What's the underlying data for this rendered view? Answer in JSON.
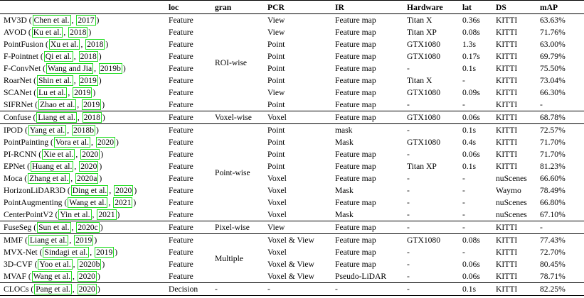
{
  "headers": {
    "method": "",
    "loc": "loc",
    "gran": "gran",
    "pcr": "PCR",
    "ir": "IR",
    "hardware": "Hardware",
    "lat": "lat",
    "ds": "DS",
    "map": "mAP"
  },
  "groups": [
    {
      "gran": "ROI-wise",
      "rows": [
        {
          "name": "MV3D",
          "cite": [
            "Chen et al.",
            "2017"
          ],
          "loc": "Feature",
          "pcr": "View",
          "ir": "Feature map",
          "hardware": "Titan X",
          "lat": "0.36s",
          "ds": "KITTI",
          "map": "63.63%"
        },
        {
          "name": "AVOD",
          "cite": [
            "Ku et al.",
            "2018"
          ],
          "loc": "Feature",
          "pcr": "View",
          "ir": "Feature map",
          "hardware": "Titan XP",
          "lat": "0.08s",
          "ds": "KITTI",
          "map": "71.76%"
        },
        {
          "name": "PointFusion",
          "cite": [
            "Xu et al.",
            "2018"
          ],
          "loc": "Feature",
          "pcr": "Point",
          "ir": "Feature map",
          "hardware": "GTX1080",
          "lat": "1.3s",
          "ds": "KITTI",
          "map": "63.00%"
        },
        {
          "name": "F-Pointnet",
          "cite": [
            "Qi et al.",
            "2018"
          ],
          "loc": "Feature",
          "pcr": "Point",
          "ir": "Feature map",
          "hardware": "GTX1080",
          "lat": "0.17s",
          "ds": "KITTI",
          "map": "69.79%"
        },
        {
          "name": "F-ConvNet",
          "cite": [
            "Wang and Jia",
            "2019b"
          ],
          "loc": "Feature",
          "pcr": "Point",
          "ir": "Feature map",
          "hardware": "-",
          "lat": "0.1s",
          "ds": "KITTI",
          "map": "75.50%"
        },
        {
          "name": "RoarNet",
          "cite": [
            "Shin et al.",
            "2019"
          ],
          "loc": "Feature",
          "pcr": "Point",
          "ir": "Feature map",
          "hardware": "Titan X",
          "lat": "-",
          "ds": "KITTI",
          "map": "73.04%"
        },
        {
          "name": "SCANet",
          "cite": [
            "Lu et al.",
            "2019"
          ],
          "loc": "Feature",
          "pcr": "View",
          "ir": "Feature map",
          "hardware": "GTX1080",
          "lat": "0.09s",
          "ds": "KITTI",
          "map": "66.30%"
        },
        {
          "name": "SIFRNet",
          "cite": [
            "Zhao et al.",
            "2019"
          ],
          "loc": "Feature",
          "pcr": "Point",
          "ir": "Feature map",
          "hardware": "-",
          "lat": "-",
          "ds": "KITTI",
          "map": "-"
        }
      ]
    },
    {
      "gran": "Voxel-wise",
      "rows": [
        {
          "name": "Confuse",
          "cite": [
            "Liang et al.",
            "2018"
          ],
          "loc": "Feature",
          "pcr": "Voxel",
          "ir": "Feature map",
          "hardware": "GTX1080",
          "lat": "0.06s",
          "ds": "KITTI",
          "map": "68.78%"
        }
      ]
    },
    {
      "gran": "Point-wise",
      "rows": [
        {
          "name": "IPOD",
          "cite": [
            "Yang et al.",
            "2018b"
          ],
          "loc": "Feature",
          "pcr": "Point",
          "ir": "mask",
          "hardware": "-",
          "lat": "0.1s",
          "ds": "KITTI",
          "map": "72.57%"
        },
        {
          "name": "PointPainting",
          "cite": [
            "Vora et al.",
            "2020"
          ],
          "loc": "Feature",
          "pcr": "Point",
          "ir": "Mask",
          "hardware": "GTX1080",
          "lat": "0.4s",
          "ds": "KITTI",
          "map": "71.70%"
        },
        {
          "name": "PI-RCNN",
          "cite": [
            "Xie et al.",
            "2020"
          ],
          "loc": "Feature",
          "pcr": "Point",
          "ir": "Feature map",
          "hardware": "-",
          "lat": "0.06s",
          "ds": "KITTI",
          "map": "71.70%"
        },
        {
          "name": "EPNet",
          "cite": [
            "Huang et al.",
            "2020"
          ],
          "loc": "Feature",
          "pcr": "Point",
          "ir": "Feature map",
          "hardware": "Titan XP",
          "lat": "0.1s",
          "ds": "KITTI",
          "map": "81.23%"
        },
        {
          "name": "Moca",
          "cite": [
            "Zhang et al.",
            "2020a"
          ],
          "loc": "Feature",
          "pcr": "Voxel",
          "ir": "Feature map",
          "hardware": "-",
          "lat": "-",
          "ds": "nuScenes",
          "map": "66.60%"
        },
        {
          "name": "HorizonLiDAR3D",
          "cite": [
            "Ding et al.",
            "2020"
          ],
          "loc": "Feature",
          "pcr": "Voxel",
          "ir": "Mask",
          "hardware": "-",
          "lat": "-",
          "ds": "Waymo",
          "map": "78.49%"
        },
        {
          "name": "PointAugmenting",
          "cite": [
            "Wang et al.",
            "2021"
          ],
          "loc": "Feature",
          "pcr": "Voxel",
          "ir": "Feature map",
          "hardware": "-",
          "lat": "-",
          "ds": "nuScenes",
          "map": "66.80%"
        },
        {
          "name": "CenterPointV2",
          "cite": [
            "Yin et al.",
            "2021"
          ],
          "loc": "Feature",
          "pcr": "Voxel",
          "ir": "Mask",
          "hardware": "-",
          "lat": "-",
          "ds": "nuScenes",
          "map": "67.10%"
        }
      ]
    },
    {
      "gran": "Pixel-wise",
      "rows": [
        {
          "name": "FuseSeg",
          "cite": [
            "Sun et al.",
            "2020c"
          ],
          "loc": "Feature",
          "pcr": "View",
          "ir": "Feature map",
          "hardware": "-",
          "lat": "-",
          "ds": "KITTI",
          "map": "-"
        }
      ]
    },
    {
      "gran": "Multiple",
      "rows": [
        {
          "name": "MMF",
          "cite": [
            "Liang et al.",
            "2019"
          ],
          "loc": "Feature",
          "pcr": "Voxel & View",
          "ir": "Feature map",
          "hardware": "GTX1080",
          "lat": "0.08s",
          "ds": "KITTI",
          "map": "77.43%"
        },
        {
          "name": "MVX-Net",
          "cite": [
            "Sindagi et al.",
            "2019"
          ],
          "loc": "Feature",
          "pcr": "Voxel",
          "ir": "Feature map",
          "hardware": "-",
          "lat": "-",
          "ds": "KITTI",
          "map": "72.70%"
        },
        {
          "name": "3D-CVF",
          "cite": [
            "Yoo et al.",
            "2020b"
          ],
          "loc": "Feature",
          "pcr": "Voxel & View",
          "ir": "Feature map",
          "hardware": "-",
          "lat": "0.06s",
          "ds": "KITTI",
          "map": "80.45%"
        },
        {
          "name": "MVAF",
          "cite": [
            "Wang et al.",
            "2020"
          ],
          "loc": "Feature",
          "pcr": "Voxel & View",
          "ir": "Pseudo-LiDAR",
          "hardware": "-",
          "lat": "0.06s",
          "ds": "KITTI",
          "map": "78.71%"
        }
      ]
    },
    {
      "gran": "-",
      "rows": [
        {
          "name": "CLOCs",
          "cite": [
            "Pang et al.",
            "2020"
          ],
          "loc": "Decision",
          "pcr": "-",
          "ir": "-",
          "hardware": "-",
          "lat": "0.1s",
          "ds": "KITTI",
          "map": "82.25%"
        }
      ]
    }
  ]
}
